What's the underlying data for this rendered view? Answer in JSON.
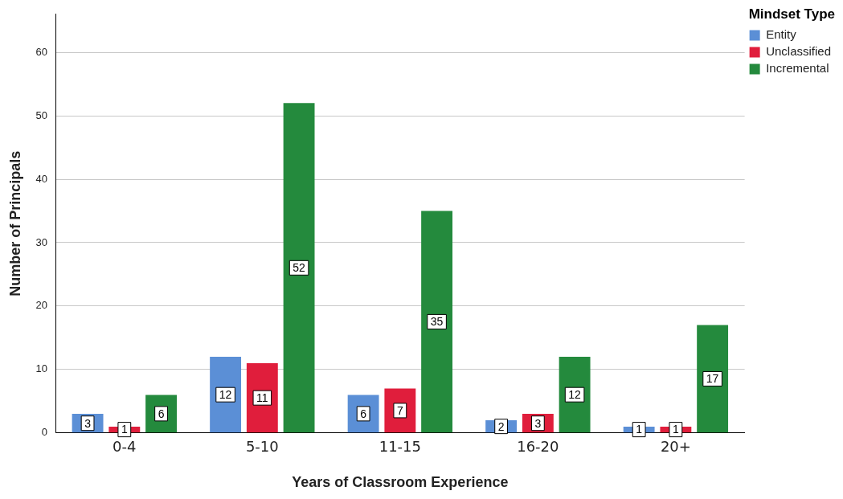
{
  "chart_data": {
    "type": "bar",
    "xlabel": "Years of Classroom Experience",
    "ylabel": "Number of Principals",
    "legend_title": "Mindset Type",
    "categories": [
      "0-4",
      "5-10",
      "11-15",
      "16-20",
      "20+"
    ],
    "series": [
      {
        "name": "Entity",
        "color": "#5b8fd6",
        "values": [
          3,
          12,
          6,
          2,
          1
        ]
      },
      {
        "name": "Unclassified",
        "color": "#e01e3c",
        "values": [
          1,
          11,
          7,
          3,
          1
        ]
      },
      {
        "name": "Incremental",
        "color": "#248a3d",
        "values": [
          6,
          52,
          35,
          12,
          17
        ]
      }
    ],
    "ylim": [
      0,
      66
    ],
    "yticks": [
      0,
      10,
      20,
      30,
      40,
      50,
      60
    ],
    "grid": "y",
    "legend": "top right",
    "data_labels": true
  }
}
